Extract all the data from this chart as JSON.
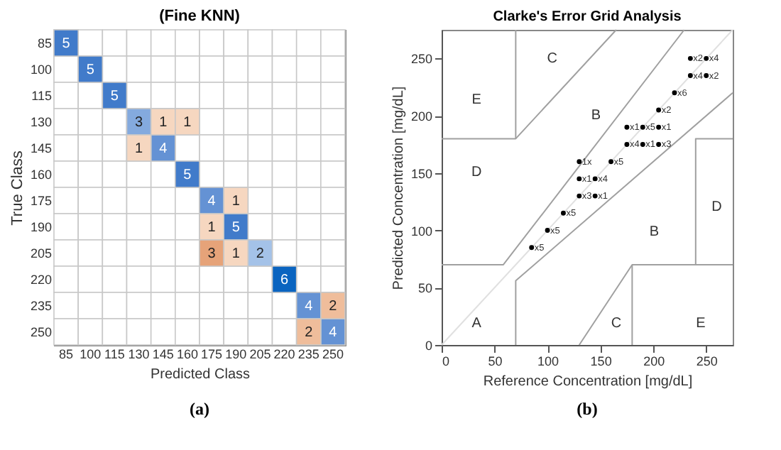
{
  "chart_data": [
    {
      "type": "heatmap",
      "title": "(Fine KNN)",
      "xlabel": "Predicted Class",
      "ylabel": "True Class",
      "data_labels": true,
      "annotations": [
        "(a)"
      ],
      "categories": [
        "85",
        "100",
        "115",
        "130",
        "145",
        "160",
        "175",
        "190",
        "205",
        "220",
        "235",
        "250"
      ],
      "y_categories": [
        "85",
        "100",
        "115",
        "130",
        "145",
        "160",
        "175",
        "190",
        "205",
        "220",
        "235",
        "250"
      ],
      "cells": [
        [
          5,
          null,
          null,
          null,
          null,
          null,
          null,
          null,
          null,
          null,
          null,
          null
        ],
        [
          null,
          5,
          null,
          null,
          null,
          null,
          null,
          null,
          null,
          null,
          null,
          null
        ],
        [
          null,
          null,
          5,
          null,
          null,
          null,
          null,
          null,
          null,
          null,
          null,
          null
        ],
        [
          null,
          null,
          null,
          3,
          1,
          1,
          null,
          null,
          null,
          null,
          null,
          null
        ],
        [
          null,
          null,
          null,
          1,
          4,
          null,
          null,
          null,
          null,
          null,
          null,
          null
        ],
        [
          null,
          null,
          null,
          null,
          null,
          5,
          null,
          null,
          null,
          null,
          null,
          null
        ],
        [
          null,
          null,
          null,
          null,
          null,
          null,
          4,
          1,
          null,
          null,
          null,
          null
        ],
        [
          null,
          null,
          null,
          null,
          null,
          null,
          1,
          5,
          null,
          null,
          null,
          null
        ],
        [
          null,
          null,
          null,
          null,
          null,
          null,
          3,
          1,
          2,
          null,
          null,
          null
        ],
        [
          null,
          null,
          null,
          null,
          null,
          null,
          null,
          null,
          null,
          6,
          null,
          null
        ],
        [
          null,
          null,
          null,
          null,
          null,
          null,
          null,
          null,
          null,
          null,
          4,
          2
        ],
        [
          null,
          null,
          null,
          null,
          null,
          null,
          null,
          null,
          null,
          null,
          2,
          4
        ]
      ]
    },
    {
      "type": "scatter",
      "title": "Clarke's Error Grid Analysis",
      "xlabel": "Reference Concentration [mg/dL]",
      "ylabel": "Predicted Concentration [mg/dL]",
      "xlim": [
        0,
        275
      ],
      "ylim": [
        0,
        275
      ],
      "xticks": [
        0,
        50,
        100,
        150,
        200,
        250
      ],
      "yticks": [
        0,
        50,
        100,
        150,
        200,
        250
      ],
      "grid": false,
      "annotations": [
        "E",
        "C",
        "B",
        "D",
        "B",
        "D",
        "A",
        "C",
        "E",
        "(b)",
        {
          "text": "x5",
          "x": 85,
          "y": 85
        },
        {
          "text": "x5",
          "x": 100,
          "y": 100
        },
        {
          "text": "x5",
          "x": 115,
          "y": 115
        },
        {
          "text": "x3",
          "x": 130,
          "y": 130
        },
        {
          "text": "x1",
          "x": 145,
          "y": 130
        },
        {
          "text": "x1",
          "x": 130,
          "y": 145
        },
        {
          "text": "x4",
          "x": 145,
          "y": 145
        },
        {
          "text": "1x",
          "x": 130,
          "y": 160
        },
        {
          "text": "x5",
          "x": 160,
          "y": 160
        },
        {
          "text": "x4",
          "x": 175,
          "y": 175
        },
        {
          "text": "x1",
          "x": 190,
          "y": 175
        },
        {
          "text": "x3",
          "x": 205,
          "y": 175
        },
        {
          "text": "x1",
          "x": 175,
          "y": 190
        },
        {
          "text": "x5",
          "x": 190,
          "y": 190
        },
        {
          "text": "x1",
          "x": 205,
          "y": 190
        },
        {
          "text": "x2",
          "x": 205,
          "y": 205
        },
        {
          "text": "x6",
          "x": 220,
          "y": 220
        },
        {
          "text": "x4",
          "x": 235,
          "y": 235
        },
        {
          "text": "x2",
          "x": 250,
          "y": 235
        },
        {
          "text": "x2",
          "x": 235,
          "y": 250
        },
        {
          "text": "x4",
          "x": 250,
          "y": 250
        }
      ],
      "series": [
        {
          "type": "line",
          "color": "#e0e0e0",
          "x": [
            0,
            275
          ],
          "values": [
            0,
            275
          ]
        },
        {
          "type": "line",
          "color": "#a0a0a0",
          "x": [
            0,
            58.3,
            229.2
          ],
          "values": [
            70,
            70,
            275
          ]
        },
        {
          "type": "line",
          "color": "#a0a0a0",
          "x": [
            70,
            70,
            275
          ],
          "values": [
            0,
            56,
            220
          ]
        },
        {
          "type": "line",
          "color": "#a0a0a0",
          "x": [
            0,
            70,
            165
          ],
          "values": [
            180,
            180,
            275
          ]
        },
        {
          "type": "line",
          "color": "#a0a0a0",
          "x": [
            70,
            70
          ],
          "values": [
            180,
            275
          ]
        },
        {
          "type": "line",
          "color": "#a0a0a0",
          "x": [
            130,
            180,
            275
          ],
          "values": [
            0,
            70,
            70
          ]
        },
        {
          "type": "line",
          "color": "#a0a0a0",
          "x": [
            180,
            180
          ],
          "values": [
            0,
            70
          ]
        },
        {
          "type": "line",
          "color": "#a0a0a0",
          "x": [
            240,
            240,
            275
          ],
          "values": [
            70,
            180,
            180
          ]
        },
        {
          "type": "scatter",
          "color": "#000000",
          "marker": "circle",
          "x": [
            85,
            100,
            115,
            130,
            145,
            130,
            145,
            130,
            160,
            175,
            190,
            205,
            175,
            190,
            205,
            205,
            220,
            235,
            250,
            235,
            250
          ],
          "values": [
            85,
            100,
            115,
            130,
            130,
            145,
            145,
            160,
            160,
            175,
            175,
            175,
            190,
            190,
            190,
            205,
            220,
            235,
            235,
            250,
            250
          ]
        }
      ]
    }
  ]
}
